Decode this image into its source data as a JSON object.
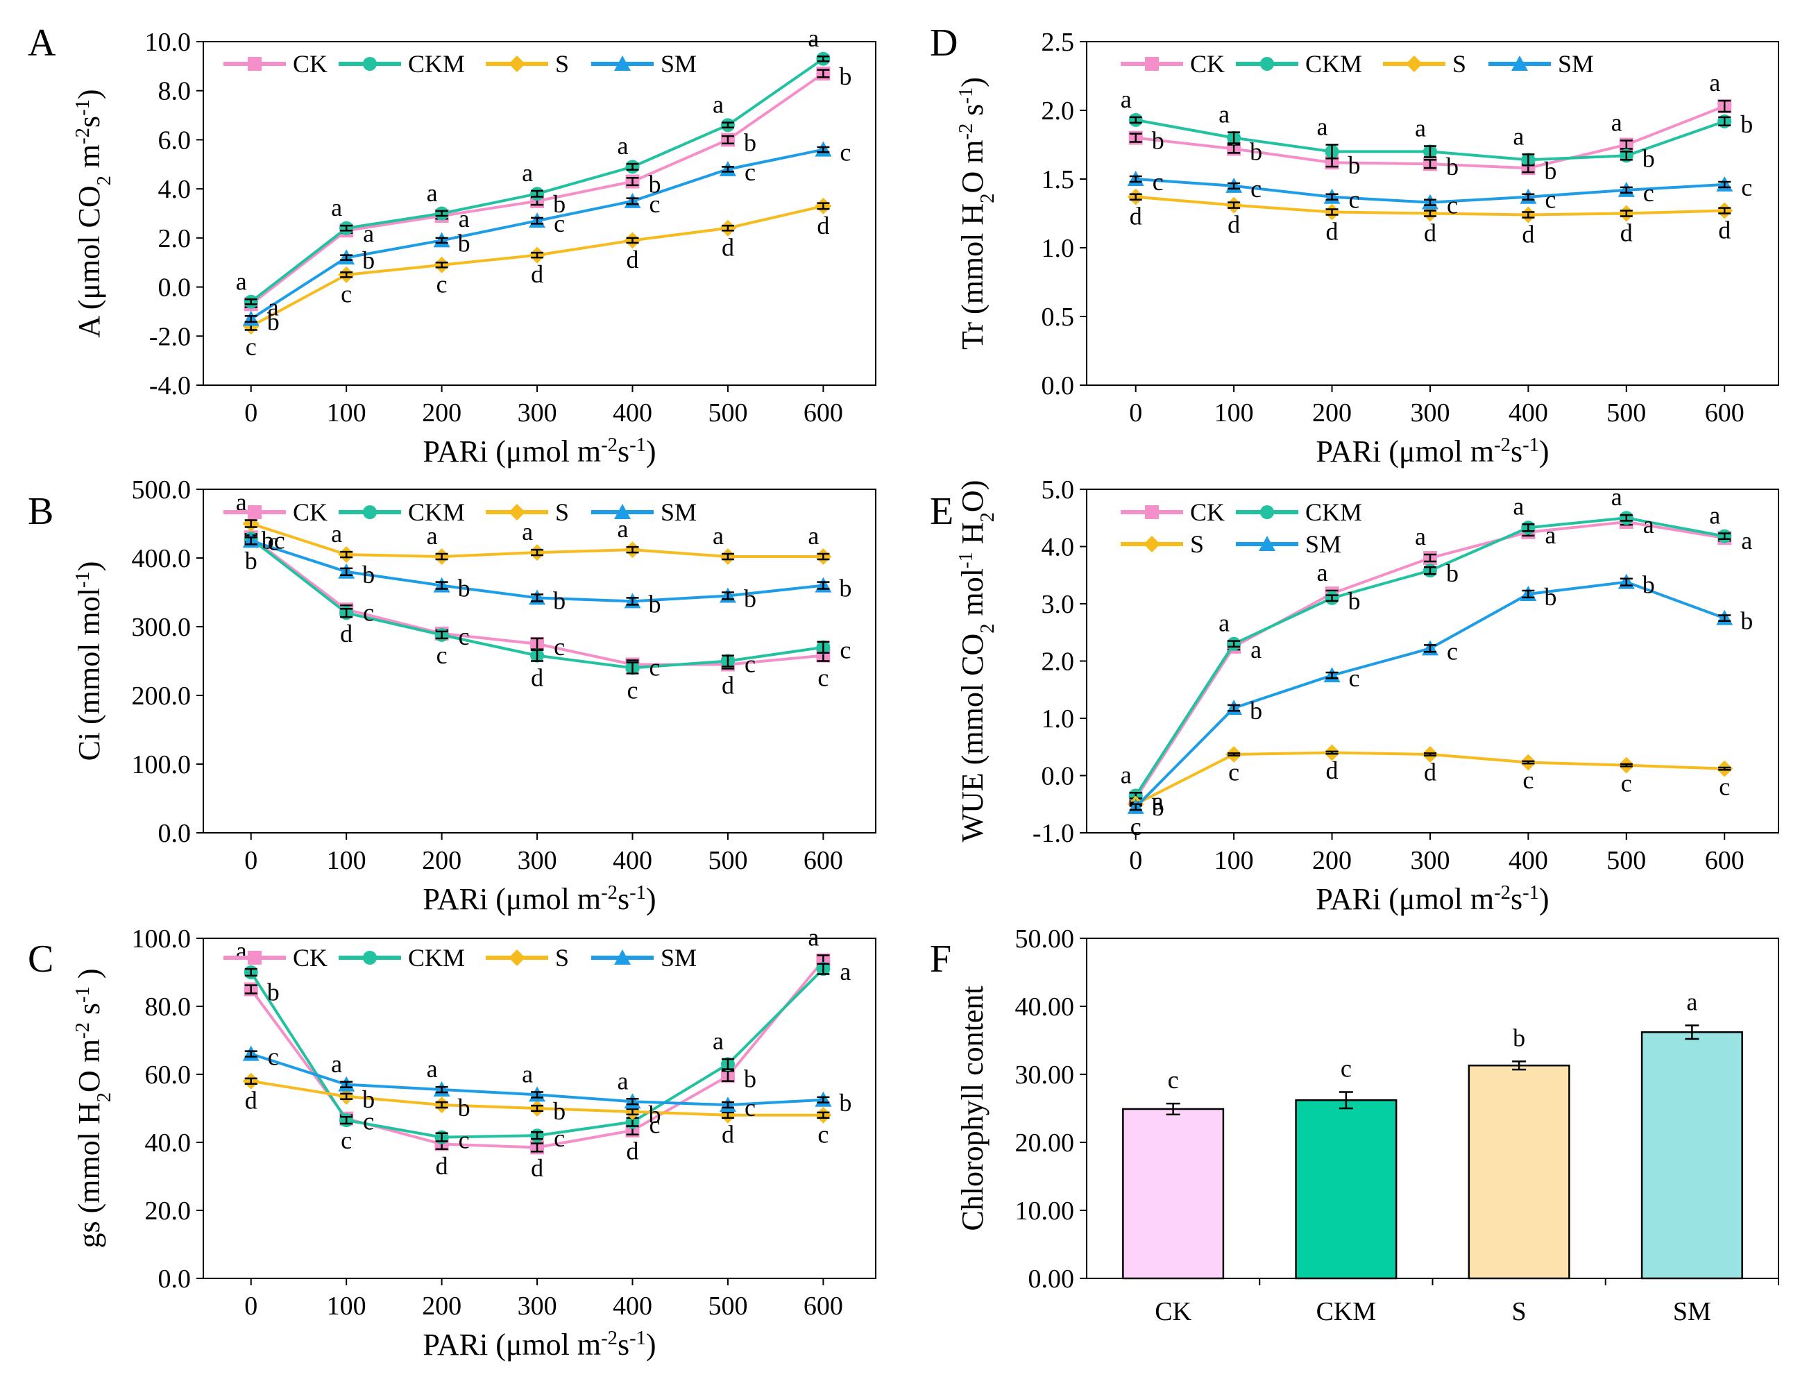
{
  "colors": {
    "CK": "#f48fc9",
    "CKM": "#22c2a0",
    "S": "#f6bb1c",
    "SM": "#1d9de6"
  },
  "chart_data": [
    {
      "panel": "A",
      "type": "line",
      "ylabel_parts": [
        "A (μmol CO",
        "2",
        " m",
        "-2",
        "s",
        "-1",
        ")"
      ],
      "xlabel_parts": [
        "PARi (μmol m",
        "-2",
        "s",
        "-1",
        ")"
      ],
      "x": [
        0,
        100,
        200,
        300,
        400,
        500,
        600
      ],
      "xticks": [
        "0",
        "100",
        "200",
        "300",
        "400",
        "500",
        "600"
      ],
      "ylim": [
        -4,
        10
      ],
      "yticks": [
        "-4.0",
        "-2.0",
        "0.0",
        "2.0",
        "4.0",
        "6.0",
        "8.0",
        "10.0"
      ],
      "legend": [
        "CK",
        "CKM",
        "S",
        "SM"
      ],
      "series": [
        {
          "name": "CK",
          "values": [
            -0.7,
            2.3,
            2.9,
            3.5,
            4.3,
            6.0,
            8.7
          ],
          "err": [
            0.12,
            0.1,
            0.12,
            0.15,
            0.15,
            0.15,
            0.15
          ],
          "letters": [
            "a",
            "a",
            "a",
            "b",
            "b",
            "b",
            "b"
          ]
        },
        {
          "name": "CKM",
          "values": [
            -0.6,
            2.4,
            3.0,
            3.8,
            4.9,
            6.6,
            9.3
          ],
          "err": [
            0.1,
            0.1,
            0.1,
            0.12,
            0.12,
            0.1,
            0.1
          ],
          "letters": [
            "a",
            "a",
            "a",
            "a",
            "a",
            "a",
            "a"
          ]
        },
        {
          "name": "S",
          "values": [
            -1.6,
            0.5,
            0.9,
            1.3,
            1.9,
            2.4,
            3.3
          ],
          "err": [
            0.15,
            0.1,
            0.1,
            0.1,
            0.1,
            0.1,
            0.12
          ],
          "letters": [
            "c",
            "c",
            "c",
            "d",
            "d",
            "d",
            "d"
          ]
        },
        {
          "name": "SM",
          "values": [
            -1.3,
            1.2,
            1.9,
            2.7,
            3.5,
            4.8,
            5.6
          ],
          "err": [
            0.12,
            0.1,
            0.1,
            0.12,
            0.12,
            0.1,
            0.1
          ],
          "letters": [
            "b",
            "b",
            "b",
            "c",
            "c",
            "c",
            "c"
          ]
        }
      ]
    },
    {
      "panel": "B",
      "type": "line",
      "ylabel_parts": [
        "Ci (mmol mol",
        "-1",
        ")"
      ],
      "xlabel_parts": [
        "PARi (μmol m",
        "-2",
        "s",
        "-1",
        ")"
      ],
      "x": [
        0,
        100,
        200,
        300,
        400,
        500,
        600
      ],
      "xticks": [
        "0",
        "100",
        "200",
        "300",
        "400",
        "500",
        "600"
      ],
      "ylim": [
        0,
        500
      ],
      "yticks": [
        "0.0",
        "100.0",
        "200.0",
        "300.0",
        "400.0",
        "500.0"
      ],
      "legend": [
        "CK",
        "CKM",
        "S",
        "SM"
      ],
      "series": [
        {
          "name": "CK",
          "values": [
            430,
            325,
            290,
            275,
            245,
            245,
            258
          ],
          "err": [
            5,
            6,
            5,
            8,
            6,
            6,
            8
          ],
          "letters": [
            "bc",
            "c",
            "c",
            "c",
            "c",
            "d",
            "c"
          ]
        },
        {
          "name": "CKM",
          "values": [
            428,
            320,
            288,
            258,
            240,
            250,
            270
          ],
          "err": [
            5,
            6,
            5,
            8,
            8,
            8,
            8
          ],
          "letters": [
            "c",
            "d",
            "c",
            "d",
            "c",
            "c",
            "c"
          ]
        },
        {
          "name": "S",
          "values": [
            450,
            405,
            402,
            408,
            412,
            402,
            402
          ],
          "err": [
            5,
            4,
            4,
            4,
            4,
            4,
            4
          ],
          "letters": [
            "a",
            "a",
            "a",
            "a",
            "a",
            "a",
            "a"
          ]
        },
        {
          "name": "SM",
          "values": [
            425,
            380,
            360,
            342,
            337,
            345,
            360
          ],
          "err": [
            5,
            5,
            5,
            5,
            5,
            5,
            5
          ],
          "letters": [
            "b",
            "b",
            "b",
            "b",
            "b",
            "b",
            "b"
          ]
        }
      ]
    },
    {
      "panel": "C",
      "type": "line",
      "ylabel_parts": [
        "gs (mmol H",
        "2",
        "O m",
        "-2",
        " s",
        "-1",
        " )"
      ],
      "xlabel_parts": [
        "PARi (μmol m",
        "-2",
        "s",
        "-1",
        ")"
      ],
      "x": [
        0,
        100,
        200,
        300,
        400,
        500,
        600
      ],
      "xticks": [
        "0",
        "100",
        "200",
        "300",
        "400",
        "500",
        "600"
      ],
      "ylim": [
        0,
        100
      ],
      "yticks": [
        "0.0",
        "20.0",
        "40.0",
        "60.0",
        "80.0",
        "100.0"
      ],
      "legend": [
        "CK",
        "CKM",
        "S",
        "SM"
      ],
      "series": [
        {
          "name": "CK",
          "values": [
            85,
            47,
            39.5,
            38.5,
            43.5,
            59.5,
            93.5
          ],
          "err": [
            1.2,
            1,
            1.5,
            1.2,
            1.2,
            1.5,
            1.5
          ],
          "letters": [
            "b",
            "c",
            "d",
            "d",
            "d",
            "b",
            "a"
          ]
        },
        {
          "name": "CKM",
          "values": [
            90,
            46.5,
            41.5,
            42,
            46,
            63,
            91
          ],
          "err": [
            1,
            1,
            1.2,
            1,
            1.2,
            1.5,
            1.5
          ],
          "letters": [
            "a",
            "c",
            "c",
            "c",
            "c",
            "a",
            "a"
          ]
        },
        {
          "name": "S",
          "values": [
            58,
            53.5,
            51,
            50,
            49,
            48,
            48
          ],
          "err": [
            0.8,
            0.8,
            0.8,
            0.8,
            0.8,
            0.8,
            0.8
          ],
          "letters": [
            "d",
            "b",
            "b",
            "b",
            "b",
            "d",
            "c"
          ]
        },
        {
          "name": "SM",
          "values": [
            66,
            57,
            55.5,
            54,
            52,
            51,
            52.5
          ],
          "err": [
            0.8,
            0.8,
            0.8,
            0.8,
            0.8,
            0.8,
            0.8
          ],
          "letters": [
            "c",
            "a",
            "a",
            "a",
            "a",
            "c",
            "b"
          ]
        }
      ]
    },
    {
      "panel": "D",
      "type": "line",
      "ylabel_parts": [
        "Tr (mmol H",
        "2",
        "O m",
        "-2",
        " s",
        "-1",
        ")"
      ],
      "xlabel_parts": [
        "PARi (μmol m",
        "-2",
        "s",
        "-1",
        ")"
      ],
      "x": [
        0,
        100,
        200,
        300,
        400,
        500,
        600
      ],
      "xticks": [
        "0",
        "100",
        "200",
        "300",
        "400",
        "500",
        "600"
      ],
      "ylim": [
        0,
        2.5
      ],
      "yticks": [
        "0.0",
        "0.5",
        "1.0",
        "1.5",
        "2.0",
        "2.5"
      ],
      "legend": [
        "CK",
        "CKM",
        "S",
        "SM"
      ],
      "series": [
        {
          "name": "CK",
          "values": [
            1.8,
            1.72,
            1.62,
            1.61,
            1.58,
            1.75,
            2.03
          ],
          "err": [
            0.03,
            0.03,
            0.03,
            0.03,
            0.03,
            0.03,
            0.04
          ],
          "letters": [
            "b",
            "b",
            "b",
            "b",
            "b",
            "a",
            "a"
          ]
        },
        {
          "name": "CKM",
          "values": [
            1.93,
            1.8,
            1.7,
            1.7,
            1.64,
            1.67,
            1.92
          ],
          "err": [
            0.02,
            0.04,
            0.05,
            0.04,
            0.04,
            0.03,
            0.03
          ],
          "letters": [
            "a",
            "a",
            "a",
            "a",
            "a",
            "b",
            "b"
          ]
        },
        {
          "name": "S",
          "values": [
            1.37,
            1.31,
            1.26,
            1.25,
            1.24,
            1.25,
            1.27
          ],
          "err": [
            0.02,
            0.02,
            0.02,
            0.02,
            0.02,
            0.02,
            0.02
          ],
          "letters": [
            "d",
            "d",
            "d",
            "d",
            "d",
            "d",
            "d"
          ]
        },
        {
          "name": "SM",
          "values": [
            1.5,
            1.45,
            1.37,
            1.33,
            1.37,
            1.42,
            1.46
          ],
          "err": [
            0.02,
            0.02,
            0.02,
            0.02,
            0.02,
            0.02,
            0.02
          ],
          "letters": [
            "c",
            "c",
            "c",
            "c",
            "c",
            "c",
            "c"
          ]
        }
      ]
    },
    {
      "panel": "E",
      "type": "line",
      "ylabel_parts": [
        "WUE (mmol CO",
        "2",
        " mol",
        "-1",
        " H",
        "2",
        "O)"
      ],
      "xlabel_parts": [
        "PARi (μmol m",
        "-2",
        "s",
        "-1",
        ")"
      ],
      "x": [
        0,
        100,
        200,
        300,
        400,
        500,
        600
      ],
      "xticks": [
        "0",
        "100",
        "200",
        "300",
        "400",
        "500",
        "600"
      ],
      "ylim": [
        -1,
        5
      ],
      "yticks": [
        "-1.0",
        "0.0",
        "1.0",
        "2.0",
        "3.0",
        "4.0",
        "5.0"
      ],
      "legend": [
        "CK",
        "CKM",
        "S",
        "SM"
      ],
      "series": [
        {
          "name": "CK",
          "values": [
            -0.4,
            2.25,
            3.18,
            3.8,
            4.25,
            4.43,
            4.15
          ],
          "err": [
            0.05,
            0.05,
            0.05,
            0.06,
            0.06,
            0.05,
            0.05
          ],
          "letters": [
            "a",
            "a",
            "a",
            "a",
            "a",
            "a",
            "a"
          ]
        },
        {
          "name": "CKM",
          "values": [
            -0.35,
            2.3,
            3.1,
            3.58,
            4.33,
            4.5,
            4.18
          ],
          "err": [
            0.05,
            0.05,
            0.05,
            0.06,
            0.06,
            0.05,
            0.05
          ],
          "letters": [
            "a",
            "a",
            "b",
            "b",
            "a",
            "a",
            "a"
          ]
        },
        {
          "name": "S",
          "values": [
            -0.5,
            0.37,
            0.4,
            0.37,
            0.23,
            0.18,
            0.12
          ],
          "err": [
            0.03,
            0.02,
            0.02,
            0.02,
            0.02,
            0.02,
            0.02
          ],
          "letters": [
            "b",
            "c",
            "d",
            "d",
            "c",
            "c",
            "c"
          ]
        },
        {
          "name": "SM",
          "values": [
            -0.55,
            1.18,
            1.75,
            2.22,
            3.17,
            3.38,
            2.75
          ],
          "err": [
            0.05,
            0.05,
            0.05,
            0.06,
            0.06,
            0.06,
            0.05
          ],
          "letters": [
            "c",
            "b",
            "c",
            "c",
            "b",
            "b",
            "b"
          ]
        }
      ]
    },
    {
      "panel": "F",
      "type": "bar",
      "ylabel_parts": [
        "Chlorophyll content"
      ],
      "categories": [
        "CK",
        "CKM",
        "S",
        "SM"
      ],
      "values": [
        24.9,
        26.2,
        31.3,
        36.2
      ],
      "err": [
        0.8,
        1.2,
        0.6,
        1.0
      ],
      "letters": [
        "c",
        "c",
        "b",
        "a"
      ],
      "ylim": [
        0,
        50
      ],
      "yticks": [
        "0.00",
        "10.00",
        "20.00",
        "30.00",
        "40.00",
        "50.00"
      ]
    }
  ]
}
